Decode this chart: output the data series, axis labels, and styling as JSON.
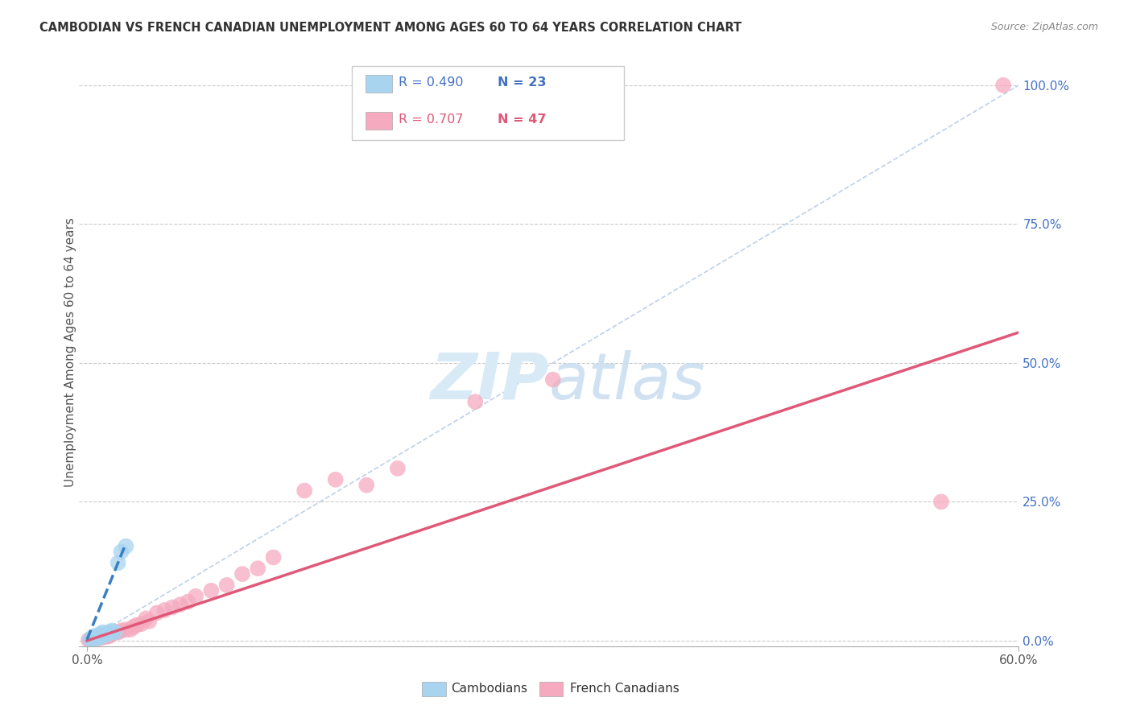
{
  "title": "CAMBODIAN VS FRENCH CANADIAN UNEMPLOYMENT AMONG AGES 60 TO 64 YEARS CORRELATION CHART",
  "source": "Source: ZipAtlas.com",
  "xlim": [
    -0.005,
    0.6
  ],
  "ylim": [
    -0.01,
    1.05
  ],
  "cambodian_R": 0.49,
  "cambodian_N": 23,
  "french_R": 0.707,
  "french_N": 47,
  "cambodian_color": "#A8D4F0",
  "french_color": "#F5AABF",
  "cambodian_line_color": "#3A7FC1",
  "french_line_color": "#E05878",
  "ref_line_color": "#B8CCE4",
  "watermark_color": "#D8EAF6",
  "ylabel": "Unemployment Among Ages 60 to 64 years",
  "ytick_labels": [
    "0.0%",
    "25.0%",
    "50.0%",
    "75.0%",
    "100.0%"
  ],
  "ytick_vals": [
    0.0,
    0.25,
    0.5,
    0.75,
    1.0
  ],
  "cambodian_x": [
    0.002,
    0.003,
    0.004,
    0.005,
    0.005,
    0.006,
    0.007,
    0.007,
    0.008,
    0.009,
    0.009,
    0.01,
    0.01,
    0.011,
    0.012,
    0.013,
    0.014,
    0.015,
    0.016,
    0.018,
    0.02,
    0.022,
    0.025
  ],
  "cambodian_y": [
    0.002,
    0.005,
    0.003,
    0.004,
    0.008,
    0.006,
    0.005,
    0.01,
    0.008,
    0.007,
    0.012,
    0.01,
    0.015,
    0.012,
    0.01,
    0.014,
    0.013,
    0.016,
    0.018,
    0.015,
    0.14,
    0.16,
    0.17
  ],
  "french_x": [
    0.001,
    0.002,
    0.003,
    0.004,
    0.005,
    0.005,
    0.006,
    0.007,
    0.008,
    0.009,
    0.01,
    0.01,
    0.011,
    0.012,
    0.013,
    0.014,
    0.015,
    0.016,
    0.018,
    0.02,
    0.022,
    0.025,
    0.028,
    0.03,
    0.032,
    0.035,
    0.038,
    0.04,
    0.045,
    0.05,
    0.055,
    0.06,
    0.065,
    0.07,
    0.08,
    0.09,
    0.1,
    0.11,
    0.12,
    0.14,
    0.16,
    0.18,
    0.2,
    0.25,
    0.3,
    0.55,
    0.59
  ],
  "french_y": [
    0.001,
    0.002,
    0.002,
    0.003,
    0.004,
    0.006,
    0.005,
    0.004,
    0.006,
    0.005,
    0.007,
    0.009,
    0.008,
    0.007,
    0.009,
    0.008,
    0.01,
    0.012,
    0.015,
    0.015,
    0.018,
    0.02,
    0.02,
    0.025,
    0.028,
    0.03,
    0.04,
    0.035,
    0.05,
    0.055,
    0.06,
    0.065,
    0.07,
    0.08,
    0.09,
    0.1,
    0.12,
    0.13,
    0.15,
    0.27,
    0.29,
    0.28,
    0.31,
    0.43,
    0.47,
    0.25,
    1.0
  ],
  "french_line_start_x": 0.0,
  "french_line_end_x": 0.6,
  "french_line_start_y": 0.0,
  "french_line_end_y": 0.555,
  "cam_line_start_x": 0.0,
  "cam_line_end_x": 0.025,
  "cam_line_start_y": 0.002,
  "cam_line_end_y": 0.175
}
